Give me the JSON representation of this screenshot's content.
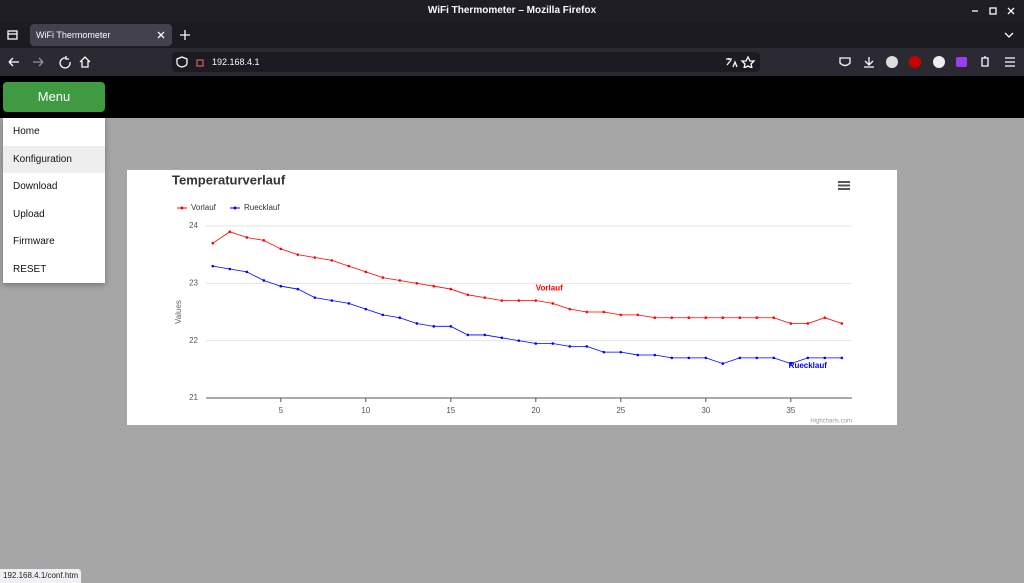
{
  "browser": {
    "window_title": "WiFi Thermometer – Mozilla Firefox",
    "tab_title": "WiFi Thermometer",
    "url": "192.168.4.1",
    "status_url": "192.168.4.1/conf.htm"
  },
  "header": {
    "menu_button": "Menu"
  },
  "menu": {
    "items": [
      "Home",
      "Konfiguration",
      "Download",
      "Upload",
      "Firmware",
      "RESET"
    ]
  },
  "chart_data": {
    "type": "line",
    "title": "Temperaturverlauf",
    "y_label": "Values",
    "credit": "Highcharts.com",
    "x": [
      1,
      2,
      3,
      4,
      5,
      6,
      7,
      8,
      9,
      10,
      11,
      12,
      13,
      14,
      15,
      16,
      17,
      18,
      19,
      20,
      21,
      22,
      23,
      24,
      25,
      26,
      27,
      28,
      29,
      30,
      31,
      32,
      33,
      34,
      35,
      36,
      37,
      38
    ],
    "series": [
      {
        "name": "Vorlauf",
        "color": "#ff0000",
        "values": [
          23.7,
          23.9,
          23.8,
          23.75,
          23.6,
          23.5,
          23.45,
          23.4,
          23.3,
          23.2,
          23.1,
          23.05,
          23.0,
          22.95,
          22.9,
          22.8,
          22.75,
          22.7,
          22.7,
          22.7,
          22.65,
          22.55,
          22.5,
          22.5,
          22.45,
          22.45,
          22.4,
          22.4,
          22.4,
          22.4,
          22.4,
          22.4,
          22.4,
          22.4,
          22.3,
          22.3,
          22.4,
          22.3
        ]
      },
      {
        "name": "Ruecklauf",
        "color": "#0000ff",
        "values": [
          23.3,
          23.25,
          23.2,
          23.05,
          22.95,
          22.9,
          22.75,
          22.7,
          22.65,
          22.55,
          22.45,
          22.4,
          22.3,
          22.25,
          22.25,
          22.1,
          22.1,
          22.05,
          22.0,
          21.95,
          21.95,
          21.9,
          21.9,
          21.8,
          21.8,
          21.75,
          21.75,
          21.7,
          21.7,
          21.7,
          21.6,
          21.7,
          21.7,
          21.7,
          21.6,
          21.7,
          21.7,
          21.7
        ]
      }
    ],
    "xlim": [
      0.6,
      38.6
    ],
    "xticks": [
      5,
      10,
      15,
      20,
      25,
      30,
      35
    ],
    "ylim": [
      21,
      24
    ],
    "yticks": [
      21,
      22,
      23,
      24
    ],
    "grid": true
  }
}
